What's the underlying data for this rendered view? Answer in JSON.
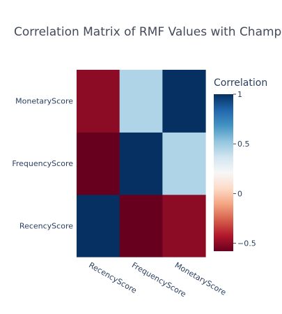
{
  "chart_data": {
    "type": "heatmap",
    "title": "Correlation Matrix of RMF Values with Champ",
    "x_categories": [
      "RecencyScore",
      "FrequencyScore",
      "MonetaryScore"
    ],
    "y_categories": [
      "RecencyScore",
      "FrequencyScore",
      "MonetaryScore"
    ],
    "z": [
      [
        1.0,
        -0.58,
        -0.5
      ],
      [
        -0.58,
        1.0,
        0.45
      ],
      [
        -0.5,
        0.45,
        1.0
      ]
    ],
    "colorbar": {
      "title": "Correlation",
      "range": [
        -0.58,
        1.0
      ],
      "ticks": [
        1,
        0.5,
        0,
        -0.5
      ],
      "tick_labels": [
        "1",
        "0.5",
        "0",
        "−0.5"
      ]
    },
    "colorscale": [
      [
        0.0,
        "#67001f"
      ],
      [
        0.1,
        "#b2182b"
      ],
      [
        0.2,
        "#d6604d"
      ],
      [
        0.3,
        "#f4a582"
      ],
      [
        0.4,
        "#fddbc7"
      ],
      [
        0.5,
        "#f7f7f7"
      ],
      [
        0.6,
        "#d1e5f0"
      ],
      [
        0.7,
        "#92c5de"
      ],
      [
        0.8,
        "#4393c3"
      ],
      [
        0.9,
        "#2166ac"
      ],
      [
        1.0,
        "#053061"
      ]
    ]
  }
}
